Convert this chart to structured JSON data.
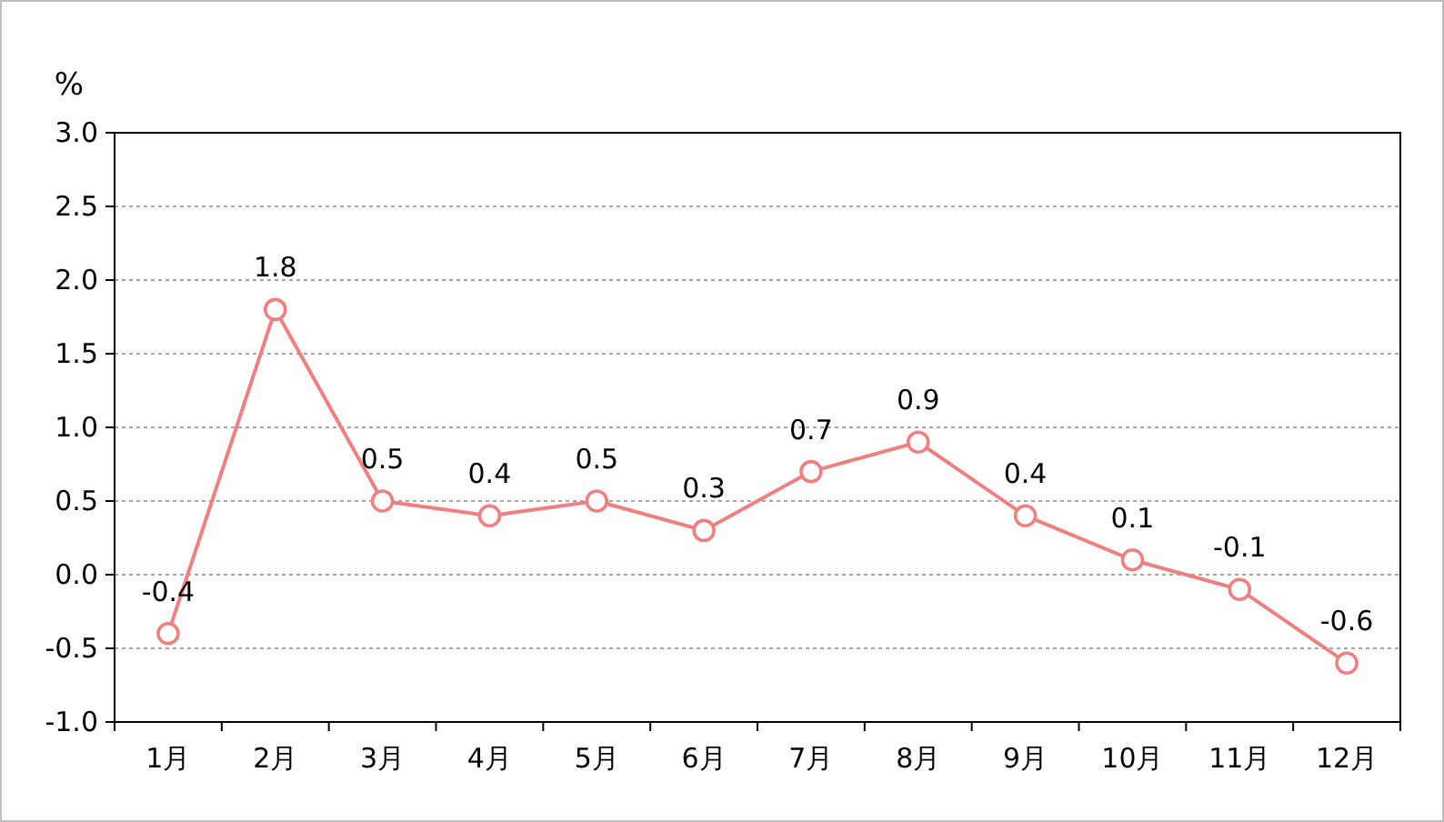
{
  "chart_data": {
    "type": "line",
    "ylabel": "%",
    "categories": [
      "1月",
      "2月",
      "3月",
      "4月",
      "5月",
      "6月",
      "7月",
      "8月",
      "9月",
      "10月",
      "11月",
      "12月"
    ],
    "series": [
      {
        "color": "#f08080",
        "values": [
          -0.4,
          1.8,
          0.5,
          0.4,
          0.5,
          0.3,
          0.7,
          0.9,
          0.4,
          0.1,
          -0.1,
          -0.6
        ]
      }
    ],
    "ylim": [
      -1,
      3
    ],
    "yticks": [
      {
        "value": -1,
        "label": "-1.0"
      },
      {
        "value": -0.5,
        "label": "-0.5"
      },
      {
        "value": 0,
        "label": "0.0"
      },
      {
        "value": 0.5,
        "label": "0.5"
      },
      {
        "value": 1,
        "label": "1.0"
      },
      {
        "value": 1.5,
        "label": "1.5"
      },
      {
        "value": 2,
        "label": "2.0"
      },
      {
        "value": 2.5,
        "label": "2.5"
      },
      {
        "value": 3,
        "label": "3.0"
      }
    ],
    "grid": "y",
    "marker": "circle",
    "line_style": "solid",
    "data_labels": true
  }
}
